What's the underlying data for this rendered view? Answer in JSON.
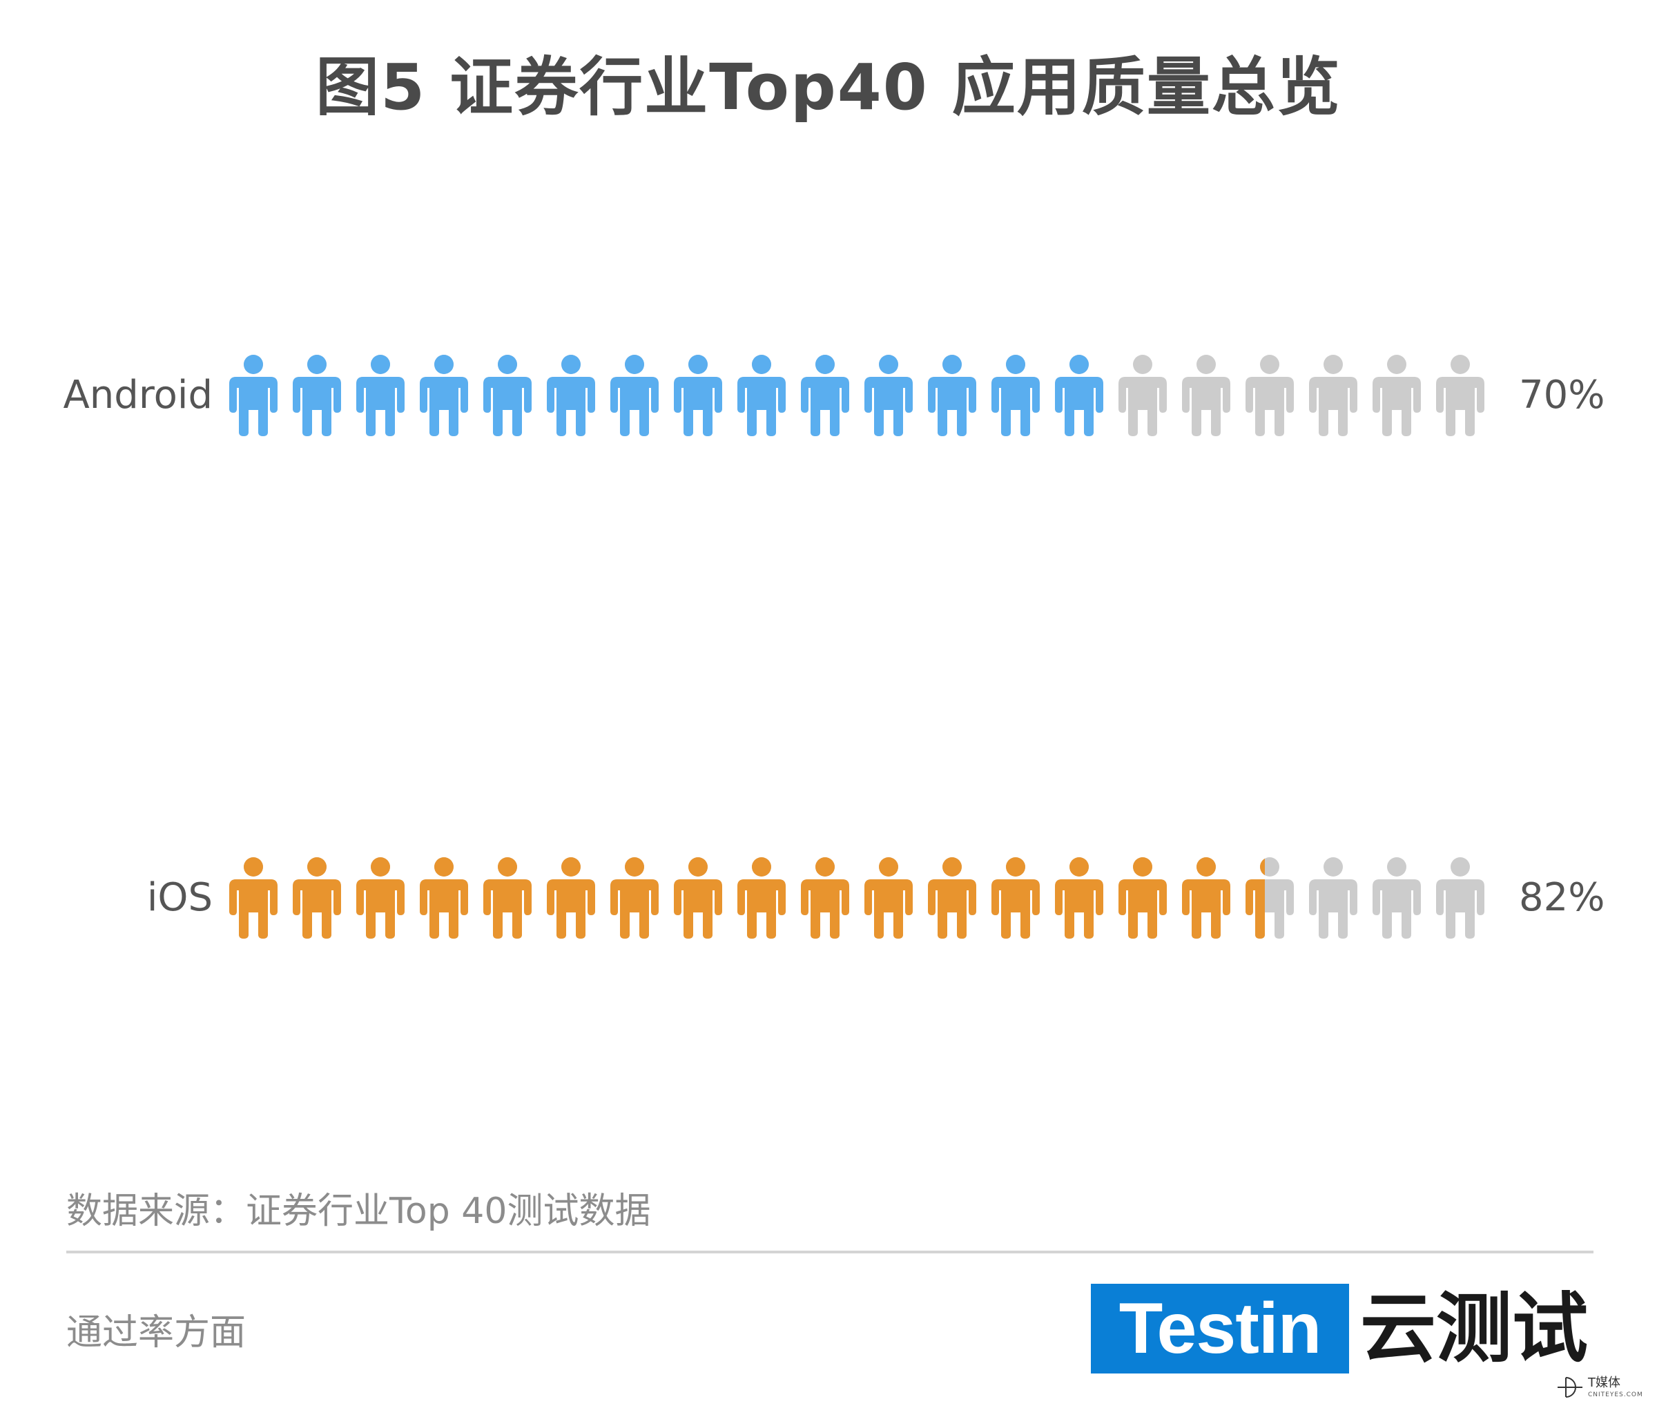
{
  "title": "图5 证券行业Top40 应用质量总览",
  "chart_data": {
    "type": "pictograph",
    "title": "图5 证券行业Top40 应用质量总览",
    "icons_per_row": 20,
    "series": [
      {
        "name": "Android",
        "value": 70,
        "value_label": "70%",
        "color": "#5aaeef"
      },
      {
        "name": "iOS",
        "value": 82,
        "value_label": "82%",
        "color": "#e8942e"
      }
    ],
    "empty_color": "#cccccc"
  },
  "source": "数据来源：证券行业Top 40测试数据",
  "footnote": "通过率方面",
  "logo": {
    "brand": "Testin",
    "cn": "云测试",
    "brand_color": "#0a7fd6"
  },
  "watermark": {
    "text": "T媒体",
    "sub": "CNITEYES.COM"
  }
}
